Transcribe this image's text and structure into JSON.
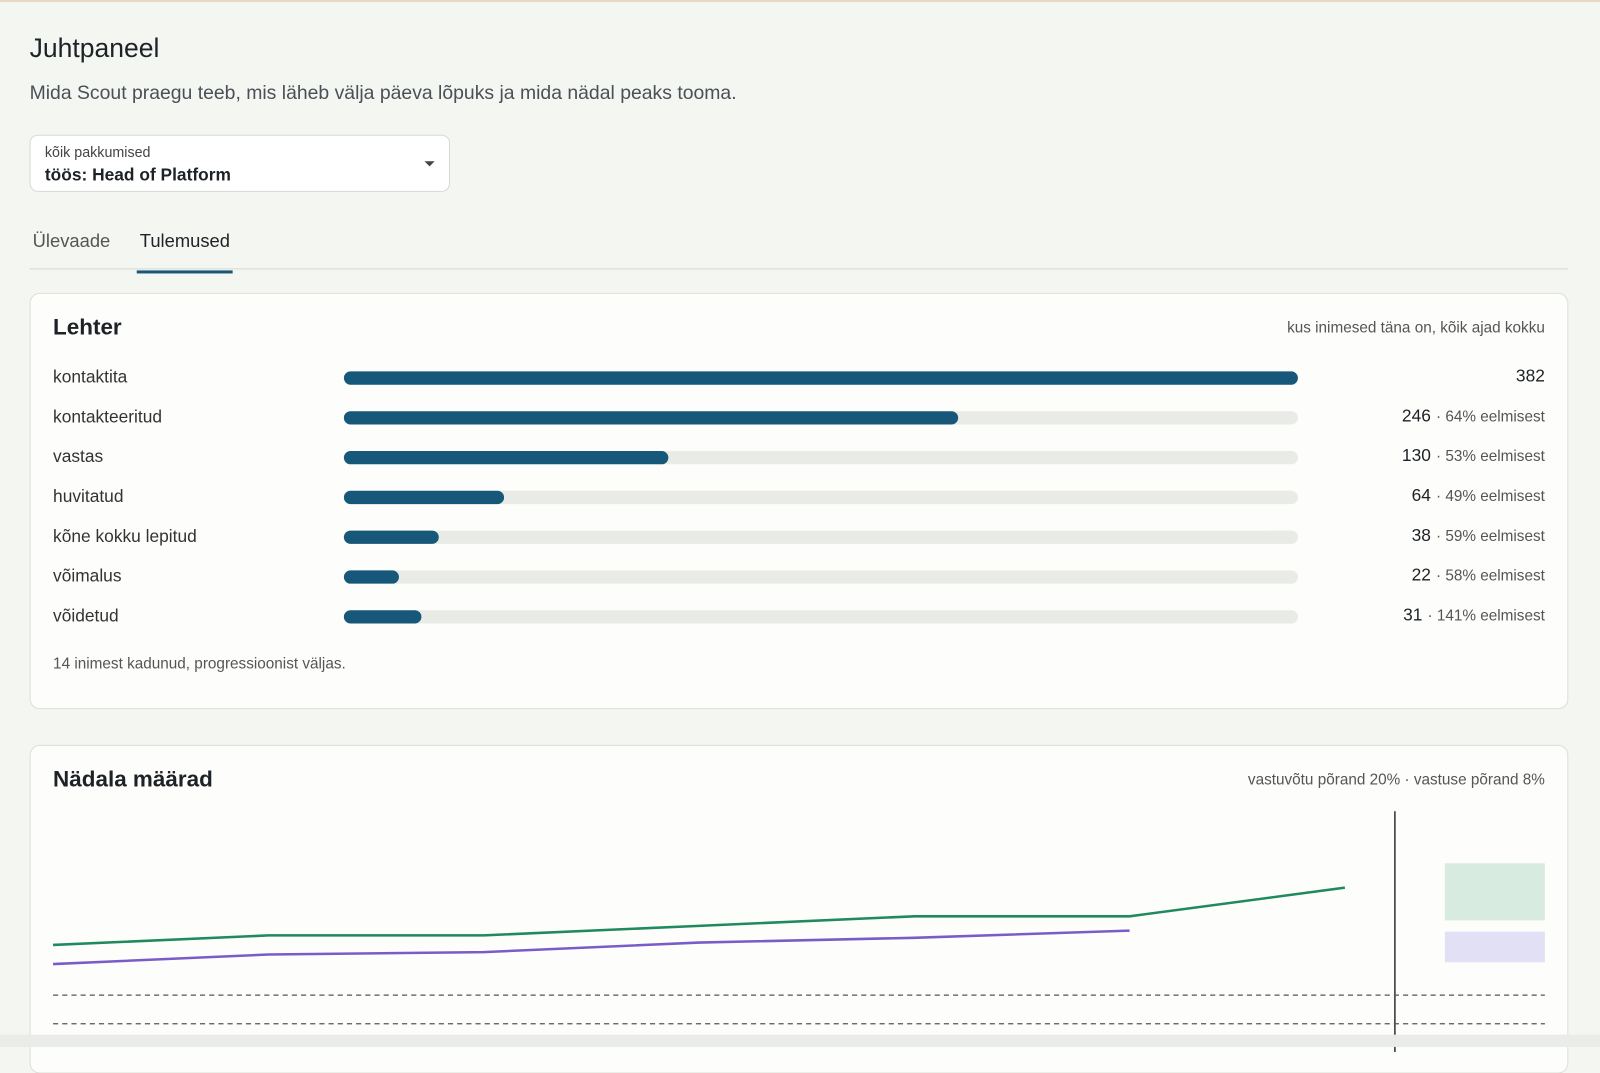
{
  "header": {
    "title": "Juhtpaneel",
    "subtitle": "Mida Scout praegu teeb, mis läheb välja päeva lõpuks ja mida nädal peaks tooma."
  },
  "filter": {
    "label": "kõik pakkumised",
    "value": "töös: Head of Platform"
  },
  "tabs": [
    "Ülevaade",
    "Tulemused"
  ],
  "funnel": {
    "title": "Lehter",
    "note": "kus inimesed täna on, kõik ajad kokku",
    "stages": [
      {
        "label": "kontaktita",
        "value": 382
      },
      {
        "label": "kontakteeritud",
        "value": 246,
        "share": "· 64% eelmisest"
      },
      {
        "label": "vastas",
        "value": 130,
        "share": "· 53% eelmisest"
      },
      {
        "label": "huvitatud",
        "value": 64,
        "share": "· 49% eelmisest"
      },
      {
        "label": "kõne kokku lepitud",
        "value": 38,
        "share": "· 59% eelmisest"
      },
      {
        "label": "võimalus",
        "value": 22,
        "share": "· 58% eelmisest"
      },
      {
        "label": "võidetud",
        "value": 31,
        "share": "· 141% eelmisest"
      }
    ],
    "footer": "14 inimest kadunud, progressioonist väljas."
  },
  "weekly": {
    "title": "Nädala määrad",
    "note": "vastuvõtu põrand 20% · vastuse põrand 8%",
    "chart_data": {
      "type": "line",
      "ylim": [
        0,
        100
      ],
      "thresholds": [
        20,
        8
      ],
      "series": [
        {
          "color": "#1f8a5e",
          "values": [
            41,
            45,
            45,
            49,
            53,
            53,
            65
          ]
        },
        {
          "color": "#7a5cc8",
          "values": [
            33,
            37,
            38,
            42,
            44,
            47,
            null
          ]
        }
      ]
    }
  }
}
